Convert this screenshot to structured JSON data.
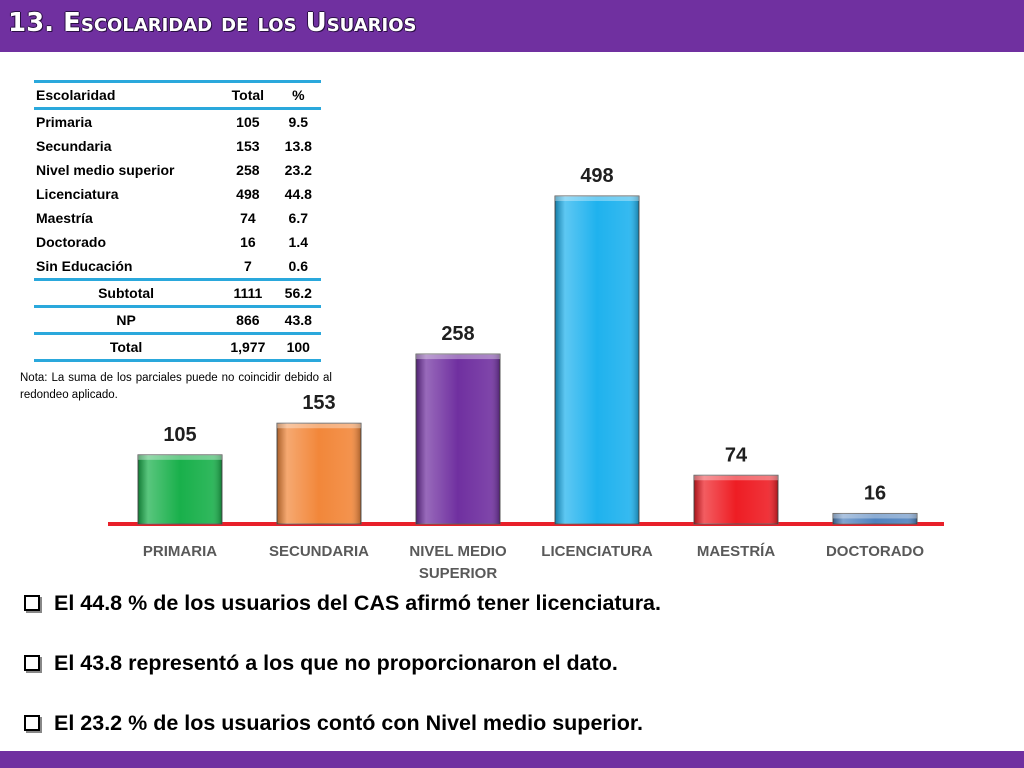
{
  "header": {
    "title": "13. Escolaridad de los Usuarios",
    "bar_color": "#7030a0"
  },
  "table": {
    "headers": [
      "Escolaridad",
      "Total",
      "%"
    ],
    "rows": [
      [
        "Primaria",
        "105",
        "9.5"
      ],
      [
        "Secundaria",
        "153",
        "13.8"
      ],
      [
        "Nivel medio superior",
        "258",
        "23.2"
      ],
      [
        "Licenciatura",
        "498",
        "44.8"
      ],
      [
        "Maestría",
        "74",
        "6.7"
      ],
      [
        "Doctorado",
        "16",
        "1.4"
      ],
      [
        "Sin Educación",
        "7",
        "0.6"
      ]
    ],
    "summary": [
      [
        "Subtotal",
        "1111",
        "56.2"
      ],
      [
        "NP",
        "866",
        "43.8"
      ],
      [
        "Total",
        "1,977",
        "100"
      ]
    ],
    "rule_color": "#2aa8dc"
  },
  "note": "Nota: La suma de los parciales puede no coincidir debido al redondeo aplicado.",
  "chart_data": {
    "type": "bar",
    "categories": [
      "PRIMARIA",
      "SECUNDARIA",
      "NIVEL MEDIO SUPERIOR",
      "LICENCIATURA",
      "MAESTRÍA",
      "DOCTORADO"
    ],
    "category_lines": [
      [
        "PRIMARIA"
      ],
      [
        "SECUNDARIA"
      ],
      [
        "NIVEL MEDIO",
        "SUPERIOR"
      ],
      [
        "LICENCIATURA"
      ],
      [
        "MAESTRÍA"
      ],
      [
        "DOCTORADO"
      ]
    ],
    "values": [
      105,
      153,
      258,
      498,
      74,
      16
    ],
    "data_labels": [
      "105",
      "153",
      "258",
      "498",
      "74",
      "16"
    ],
    "colors": [
      "#19b04b",
      "#f2873a",
      "#7030a0",
      "#1fb2ee",
      "#ee1d24",
      "#4f81bd"
    ],
    "baseline_color": "#e8202a",
    "title": "",
    "xlabel": "",
    "ylabel": "",
    "ylim": [
      0,
      498
    ],
    "grid": false
  },
  "bullets": [
    "El 44.8 % de los usuarios del CAS afirmó tener licenciatura.",
    "El 43.8 representó a los que no proporcionaron el dato.",
    "El 23.2 % de los usuarios contó con Nivel medio superior."
  ]
}
